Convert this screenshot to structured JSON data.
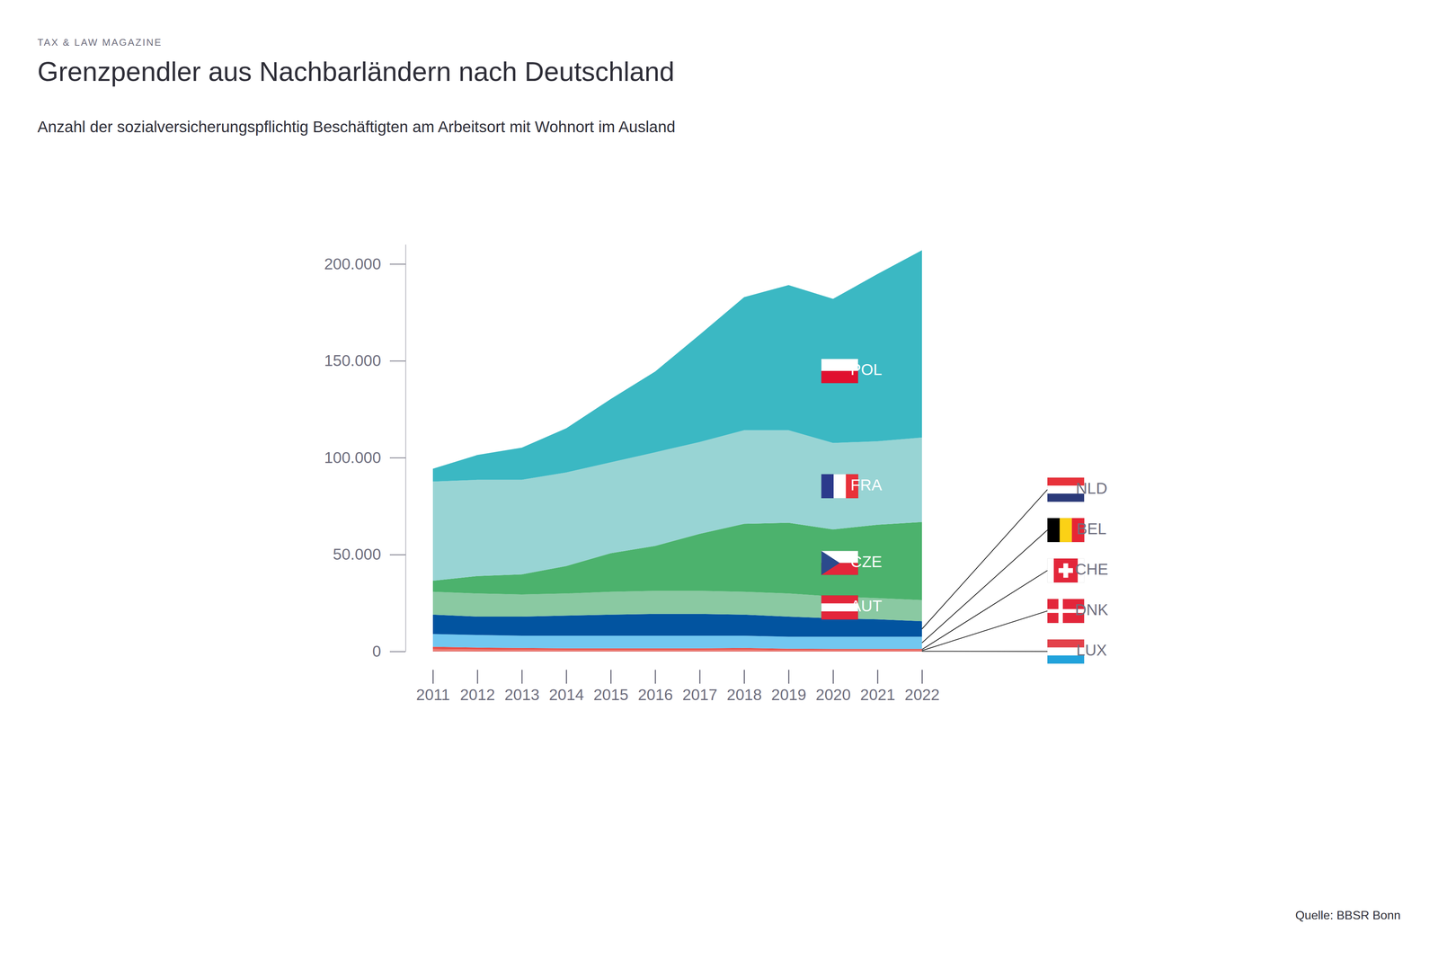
{
  "chart_data": {
    "type": "area",
    "stacked": true,
    "supertitle": "TAX & LAW MAGAZINE",
    "title": "Grenzpendler aus Nachbarländern nach Deutschland",
    "subtitle": "Anzahl der sozialversicherungspflichtig Beschäftigten am Arbeitsort mit Wohnort im Ausland",
    "source": "Quelle: BBSR Bonn",
    "x": [
      2011,
      2012,
      2013,
      2014,
      2015,
      2016,
      2017,
      2018,
      2019,
      2020,
      2021,
      2022
    ],
    "xlim": [
      2011,
      2022
    ],
    "xticks": [
      2011,
      2012,
      2013,
      2014,
      2015,
      2016,
      2017,
      2018,
      2019,
      2020,
      2021,
      2022
    ],
    "ylim": [
      0,
      210000
    ],
    "yticks": [
      0,
      {
        "value": 50000,
        "label": "50.000"
      },
      {
        "value": 100000,
        "label": "100.000"
      },
      {
        "value": 150000,
        "label": "150.000"
      },
      {
        "value": 200000,
        "label": "200.000"
      }
    ],
    "grid": false,
    "series": [
      {
        "name": "LUX",
        "color": "#c93f45",
        "values": [
          300,
          200,
          200,
          200,
          200,
          200,
          200,
          200,
          200,
          200,
          200,
          200
        ]
      },
      {
        "name": "DNK",
        "color": "#f07b70",
        "values": [
          900,
          800,
          700,
          600,
          600,
          600,
          600,
          700,
          500,
          500,
          500,
          500
        ]
      },
      {
        "name": "CHE",
        "color": "#e8504a",
        "values": [
          1200,
          1000,
          900,
          800,
          800,
          800,
          800,
          900,
          700,
          600,
          600,
          600
        ]
      },
      {
        "name": "BEL",
        "color": "#72c7f0",
        "values": [
          6600,
          6500,
          6300,
          6500,
          6500,
          6500,
          6500,
          6300,
          6200,
          6300,
          6300,
          6300
        ]
      },
      {
        "name": "NLD",
        "color": "#0254a0",
        "values": [
          10000,
          9500,
          9900,
          10400,
          10900,
          11300,
          11300,
          10900,
          10400,
          9500,
          9000,
          8000
        ]
      },
      {
        "name": "AUT",
        "color": "#8ac9a2",
        "values": [
          11800,
          11900,
          11400,
          11400,
          11800,
          11900,
          11900,
          11800,
          11900,
          11300,
          10900,
          10900
        ]
      },
      {
        "name": "CZE",
        "color": "#4cb26d",
        "values": [
          5700,
          9000,
          10400,
          14200,
          19900,
          23200,
          29400,
          35100,
          36500,
          34600,
          37900,
          40300
        ]
      },
      {
        "name": "FRA",
        "color": "#98d4d4",
        "values": [
          51200,
          49700,
          48800,
          48300,
          46900,
          48300,
          47400,
          48300,
          47800,
          44600,
          43100,
          43600
        ]
      },
      {
        "name": "POL",
        "color": "#3bb8c3",
        "values": [
          6600,
          12800,
          16600,
          22800,
          32700,
          41700,
          55400,
          68700,
          74900,
          74400,
          86300,
          96700
        ]
      }
    ]
  }
}
